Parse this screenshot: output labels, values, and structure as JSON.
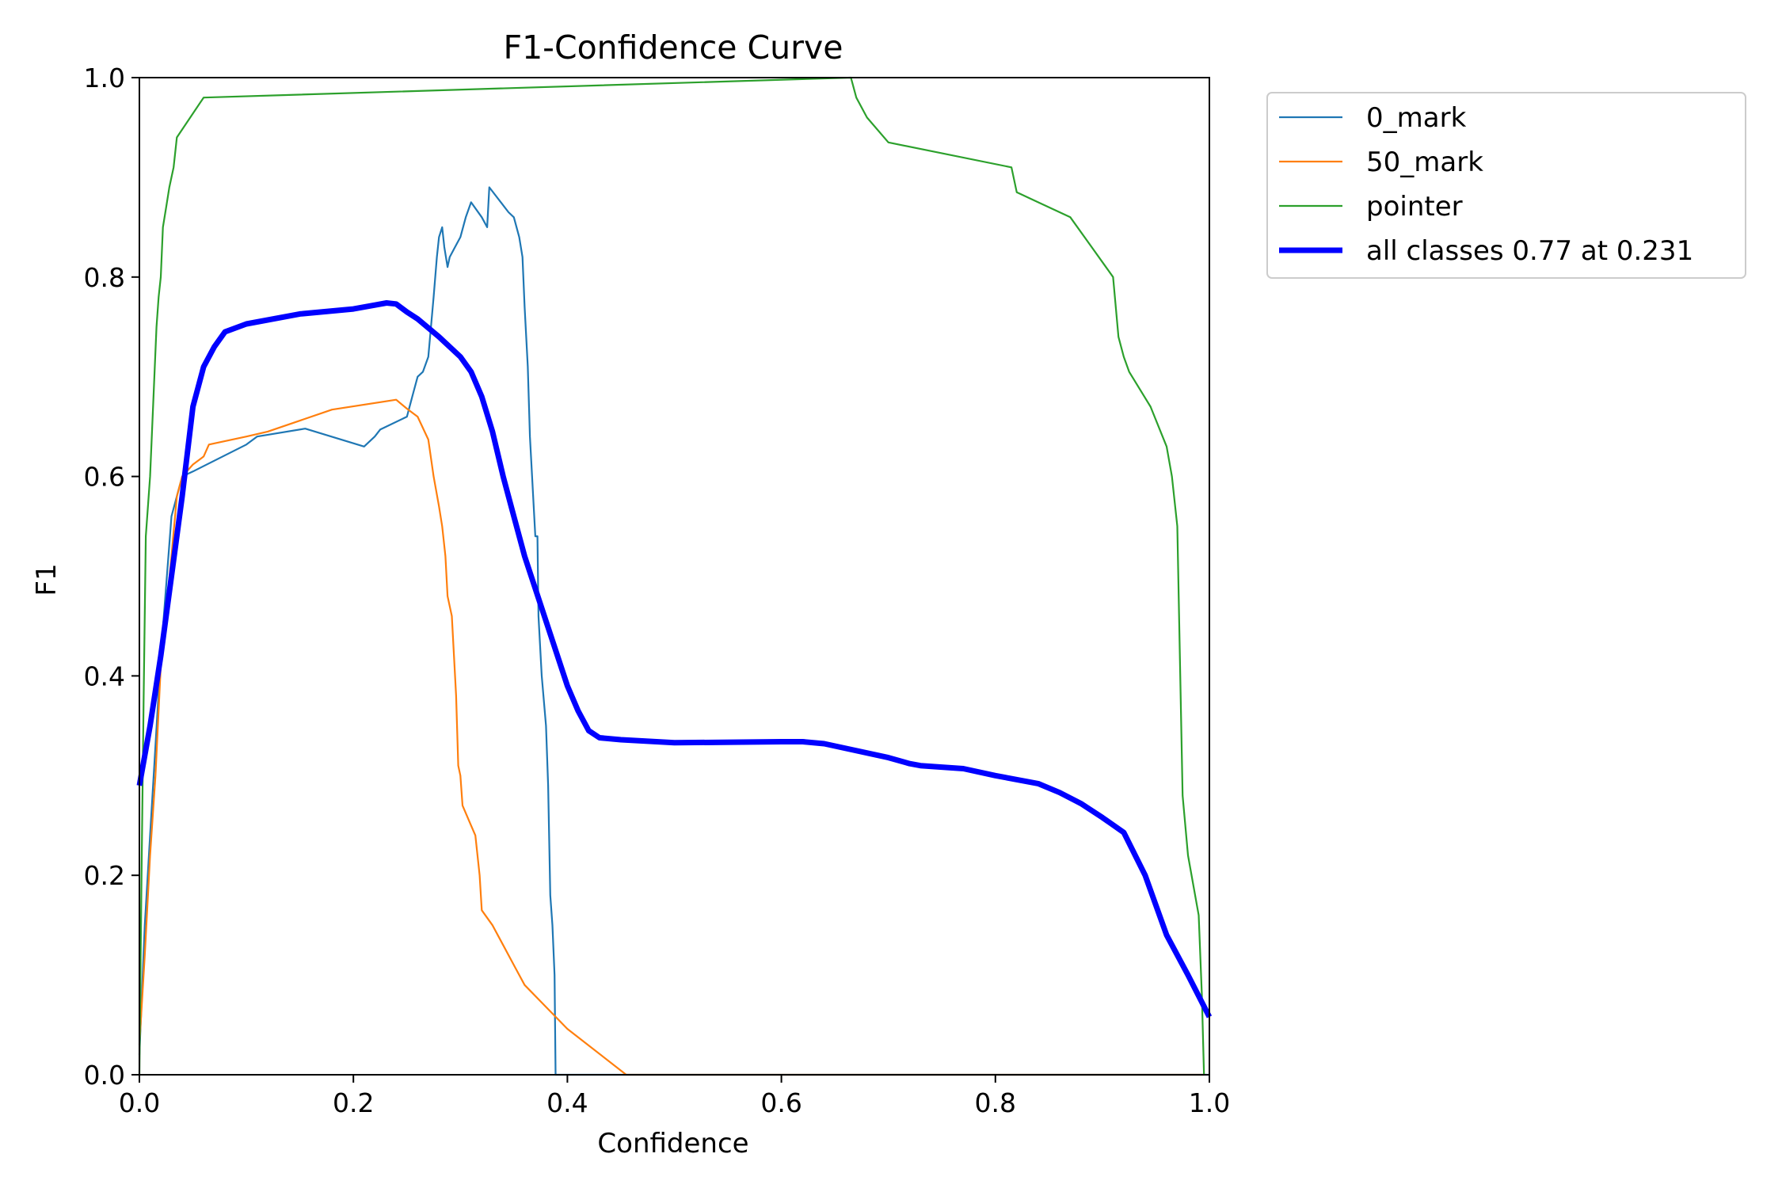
{
  "chart_data": {
    "type": "line",
    "title": "F1-Confidence Curve",
    "xlabel": "Confidence",
    "ylabel": "F1",
    "xlim": [
      0.0,
      1.0
    ],
    "ylim": [
      0.0,
      1.0
    ],
    "xticks": [
      "0.0",
      "0.2",
      "0.4",
      "0.6",
      "0.8",
      "1.0"
    ],
    "yticks": [
      "0.0",
      "0.2",
      "0.4",
      "0.6",
      "0.8",
      "1.0"
    ],
    "grid": false,
    "legend_position": "outside upper-right",
    "series": [
      {
        "name": "0_mark",
        "color": "#1f77b4",
        "width": "thin",
        "points": [
          [
            0.0,
            0.02
          ],
          [
            0.005,
            0.15
          ],
          [
            0.01,
            0.24
          ],
          [
            0.015,
            0.33
          ],
          [
            0.02,
            0.42
          ],
          [
            0.03,
            0.56
          ],
          [
            0.04,
            0.6
          ],
          [
            0.05,
            0.605
          ],
          [
            0.1,
            0.632
          ],
          [
            0.11,
            0.64
          ],
          [
            0.155,
            0.648
          ],
          [
            0.21,
            0.63
          ],
          [
            0.22,
            0.64
          ],
          [
            0.225,
            0.647
          ],
          [
            0.25,
            0.66
          ],
          [
            0.255,
            0.68
          ],
          [
            0.26,
            0.7
          ],
          [
            0.265,
            0.705
          ],
          [
            0.27,
            0.72
          ],
          [
            0.275,
            0.78
          ],
          [
            0.278,
            0.82
          ],
          [
            0.28,
            0.84
          ],
          [
            0.283,
            0.85
          ],
          [
            0.285,
            0.83
          ],
          [
            0.288,
            0.81
          ],
          [
            0.29,
            0.82
          ],
          [
            0.295,
            0.83
          ],
          [
            0.3,
            0.84
          ],
          [
            0.305,
            0.86
          ],
          [
            0.31,
            0.875
          ],
          [
            0.32,
            0.86
          ],
          [
            0.325,
            0.85
          ],
          [
            0.327,
            0.89
          ],
          [
            0.345,
            0.865
          ],
          [
            0.35,
            0.86
          ],
          [
            0.355,
            0.84
          ],
          [
            0.358,
            0.82
          ],
          [
            0.36,
            0.77
          ],
          [
            0.363,
            0.71
          ],
          [
            0.365,
            0.64
          ],
          [
            0.37,
            0.54
          ],
          [
            0.372,
            0.54
          ],
          [
            0.373,
            0.46
          ],
          [
            0.376,
            0.4
          ],
          [
            0.38,
            0.35
          ],
          [
            0.382,
            0.29
          ],
          [
            0.384,
            0.18
          ],
          [
            0.386,
            0.15
          ],
          [
            0.388,
            0.1
          ],
          [
            0.389,
            0.0
          ],
          [
            1.0,
            0.0
          ]
        ]
      },
      {
        "name": "50_mark",
        "color": "#ff7f0e",
        "width": "thin",
        "points": [
          [
            0.0,
            0.03
          ],
          [
            0.005,
            0.12
          ],
          [
            0.01,
            0.22
          ],
          [
            0.015,
            0.3
          ],
          [
            0.02,
            0.41
          ],
          [
            0.03,
            0.52
          ],
          [
            0.035,
            0.58
          ],
          [
            0.04,
            0.6
          ],
          [
            0.05,
            0.612
          ],
          [
            0.06,
            0.62
          ],
          [
            0.065,
            0.632
          ],
          [
            0.1,
            0.64
          ],
          [
            0.12,
            0.645
          ],
          [
            0.18,
            0.667
          ],
          [
            0.24,
            0.677
          ],
          [
            0.25,
            0.668
          ],
          [
            0.26,
            0.66
          ],
          [
            0.27,
            0.637
          ],
          [
            0.275,
            0.6
          ],
          [
            0.28,
            0.57
          ],
          [
            0.283,
            0.55
          ],
          [
            0.286,
            0.52
          ],
          [
            0.288,
            0.48
          ],
          [
            0.29,
            0.47
          ],
          [
            0.292,
            0.46
          ],
          [
            0.294,
            0.42
          ],
          [
            0.296,
            0.38
          ],
          [
            0.298,
            0.31
          ],
          [
            0.3,
            0.3
          ],
          [
            0.302,
            0.27
          ],
          [
            0.31,
            0.25
          ],
          [
            0.314,
            0.24
          ],
          [
            0.318,
            0.2
          ],
          [
            0.32,
            0.165
          ],
          [
            0.33,
            0.15
          ],
          [
            0.34,
            0.13
          ],
          [
            0.35,
            0.11
          ],
          [
            0.36,
            0.09
          ],
          [
            0.4,
            0.046
          ],
          [
            0.455,
            0.0
          ],
          [
            0.995,
            0.0
          ]
        ]
      },
      {
        "name": "pointer",
        "color": "#2ca02c",
        "width": "thin",
        "points": [
          [
            0.0,
            0.0
          ],
          [
            0.002,
            0.2
          ],
          [
            0.004,
            0.38
          ],
          [
            0.006,
            0.54
          ],
          [
            0.01,
            0.6
          ],
          [
            0.012,
            0.65
          ],
          [
            0.014,
            0.7
          ],
          [
            0.016,
            0.75
          ],
          [
            0.018,
            0.78
          ],
          [
            0.02,
            0.8
          ],
          [
            0.022,
            0.85
          ],
          [
            0.025,
            0.87
          ],
          [
            0.028,
            0.89
          ],
          [
            0.03,
            0.9
          ],
          [
            0.032,
            0.91
          ],
          [
            0.035,
            0.94
          ],
          [
            0.06,
            0.98
          ],
          [
            0.665,
            1.0
          ],
          [
            0.67,
            0.98
          ],
          [
            0.68,
            0.96
          ],
          [
            0.7,
            0.935
          ],
          [
            0.815,
            0.91
          ],
          [
            0.82,
            0.885
          ],
          [
            0.87,
            0.86
          ],
          [
            0.89,
            0.83
          ],
          [
            0.91,
            0.8
          ],
          [
            0.915,
            0.74
          ],
          [
            0.92,
            0.72
          ],
          [
            0.925,
            0.705
          ],
          [
            0.945,
            0.67
          ],
          [
            0.96,
            0.63
          ],
          [
            0.965,
            0.6
          ],
          [
            0.97,
            0.55
          ],
          [
            0.975,
            0.28
          ],
          [
            0.98,
            0.22
          ],
          [
            0.99,
            0.16
          ],
          [
            0.993,
            0.08
          ],
          [
            0.995,
            0.0
          ]
        ]
      },
      {
        "name": "all classes 0.77 at 0.231",
        "color": "#0000ff",
        "width": "thick",
        "points": [
          [
            0.0,
            0.29
          ],
          [
            0.01,
            0.35
          ],
          [
            0.02,
            0.42
          ],
          [
            0.03,
            0.5
          ],
          [
            0.04,
            0.58
          ],
          [
            0.05,
            0.67
          ],
          [
            0.06,
            0.71
          ],
          [
            0.07,
            0.73
          ],
          [
            0.08,
            0.745
          ],
          [
            0.1,
            0.753
          ],
          [
            0.15,
            0.763
          ],
          [
            0.2,
            0.768
          ],
          [
            0.231,
            0.774
          ],
          [
            0.24,
            0.773
          ],
          [
            0.25,
            0.765
          ],
          [
            0.26,
            0.758
          ],
          [
            0.28,
            0.74
          ],
          [
            0.3,
            0.72
          ],
          [
            0.31,
            0.705
          ],
          [
            0.32,
            0.68
          ],
          [
            0.33,
            0.645
          ],
          [
            0.34,
            0.6
          ],
          [
            0.35,
            0.56
          ],
          [
            0.36,
            0.52
          ],
          [
            0.38,
            0.455
          ],
          [
            0.4,
            0.39
          ],
          [
            0.41,
            0.365
          ],
          [
            0.42,
            0.345
          ],
          [
            0.43,
            0.338
          ],
          [
            0.45,
            0.336
          ],
          [
            0.5,
            0.333
          ],
          [
            0.6,
            0.334
          ],
          [
            0.62,
            0.334
          ],
          [
            0.64,
            0.332
          ],
          [
            0.7,
            0.318
          ],
          [
            0.72,
            0.312
          ],
          [
            0.73,
            0.31
          ],
          [
            0.77,
            0.307
          ],
          [
            0.8,
            0.3
          ],
          [
            0.84,
            0.292
          ],
          [
            0.86,
            0.283
          ],
          [
            0.88,
            0.272
          ],
          [
            0.9,
            0.258
          ],
          [
            0.92,
            0.243
          ],
          [
            0.94,
            0.2
          ],
          [
            0.96,
            0.14
          ],
          [
            0.98,
            0.1
          ],
          [
            1.0,
            0.058
          ]
        ]
      }
    ]
  }
}
